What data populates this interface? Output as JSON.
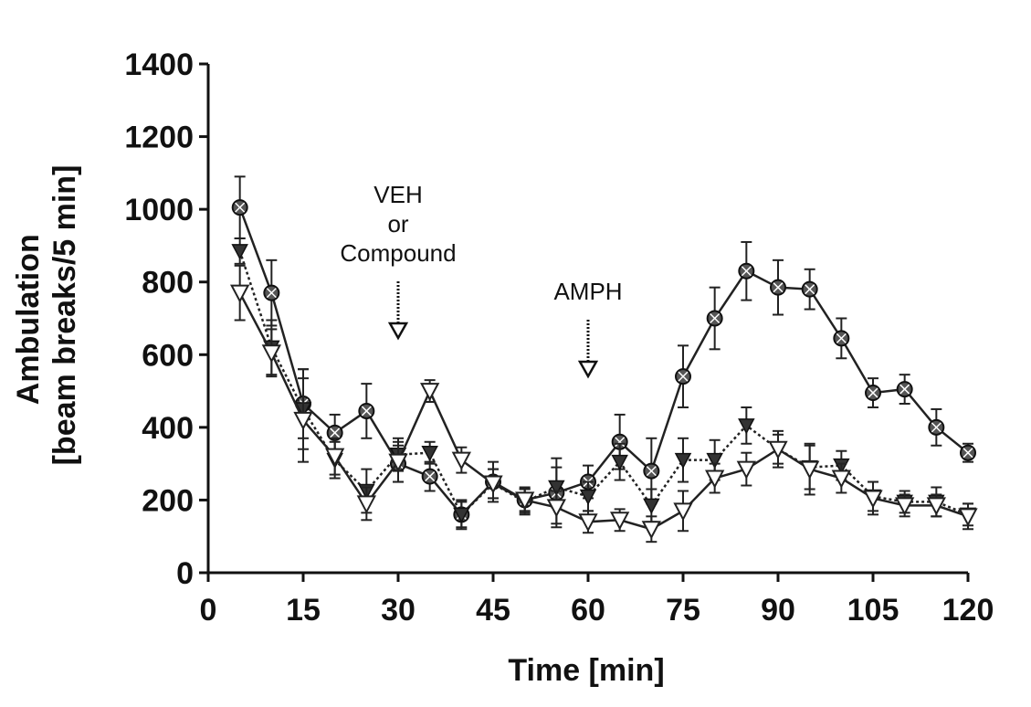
{
  "chart_data": {
    "type": "line",
    "xlabel": "Time [min]",
    "ylabel_line1": "Ambulation",
    "ylabel_line2": "[beam breaks/5 min]",
    "xlim": [
      0,
      120
    ],
    "ylim": [
      0,
      1400
    ],
    "xticks": [
      0,
      15,
      30,
      45,
      60,
      75,
      90,
      105,
      120
    ],
    "yticks": [
      0,
      200,
      400,
      600,
      800,
      1000,
      1200,
      1400
    ],
    "grid": false,
    "x": [
      5,
      10,
      15,
      20,
      25,
      30,
      35,
      40,
      45,
      50,
      55,
      60,
      65,
      70,
      75,
      80,
      85,
      90,
      95,
      100,
      105,
      110,
      115,
      120
    ],
    "series": [
      {
        "marker": "circle-x",
        "line": "solid",
        "values": [
          1005,
          770,
          465,
          385,
          445,
          300,
          265,
          160,
          250,
          200,
          220,
          250,
          360,
          280,
          540,
          700,
          830,
          785,
          780,
          645,
          495,
          505,
          400,
          330
        ],
        "errors": [
          85,
          90,
          95,
          50,
          75,
          50,
          40,
          35,
          55,
          35,
          95,
          45,
          75,
          90,
          85,
          85,
          80,
          75,
          55,
          55,
          40,
          40,
          50,
          25
        ]
      },
      {
        "marker": "triangle-down-filled",
        "line": "dotted",
        "values": [
          885,
          620,
          450,
          310,
          225,
          325,
          330,
          160,
          245,
          195,
          235,
          210,
          305,
          185,
          310,
          310,
          405,
          340,
          290,
          295,
          210,
          195,
          195,
          160
        ],
        "errors": [
          35,
          75,
          110,
          50,
          60,
          45,
          30,
          40,
          40,
          35,
          55,
          40,
          50,
          45,
          60,
          55,
          50,
          40,
          60,
          40,
          40,
          30,
          40,
          30
        ]
      },
      {
        "marker": "triangle-down-open",
        "line": "solid",
        "values": [
          770,
          605,
          420,
          320,
          190,
          305,
          500,
          310,
          245,
          200,
          180,
          140,
          145,
          120,
          170,
          260,
          285,
          340,
          285,
          260,
          205,
          185,
          185,
          155
        ],
        "errors": [
          75,
          65,
          115,
          50,
          45,
          55,
          30,
          35,
          40,
          30,
          45,
          30,
          30,
          35,
          55,
          40,
          45,
          50,
          70,
          40,
          45,
          30,
          30,
          35
        ]
      }
    ],
    "annotations": [
      {
        "text_lines": [
          "VEH",
          "or",
          "Compound"
        ],
        "x": 30
      },
      {
        "text_lines": [
          "AMPH"
        ],
        "x": 60
      }
    ]
  }
}
